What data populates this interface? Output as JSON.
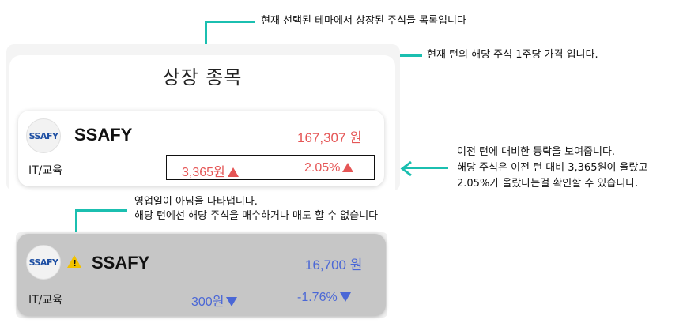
{
  "annotations": {
    "top": "현재 선택된 테마에서 상장된 주식들 목록입니다",
    "price": "현재 턴의 해당 주식 1주당 가격 입니다.",
    "change": [
      "이전 턴에 대비한 등락을 보여줍니다.",
      "해당 주식은 이전 턴 대비 3,365원이 올랐고",
      "2.05%가 올랐다는걸 확인할 수 있습니다."
    ],
    "holiday": [
      "영업일이 아님을 나타냅니다.",
      "해당 턴에선 해당 주식을 매수하거나 매도 할 수 없습니다"
    ]
  },
  "panel": {
    "title": "상장 종목"
  },
  "stock_active": {
    "logo_text": "SSAFY",
    "name": "SSAFY",
    "price": "167,307 원",
    "sector": "IT/교육",
    "change_amount": "3,365원",
    "change_percent": "2.05%",
    "direction": "up"
  },
  "stock_closed": {
    "logo_text": "SSAFY",
    "name": "SSAFY",
    "price": "16,700 원",
    "sector": "IT/교육",
    "change_amount": "300원",
    "change_percent": "-1.76%",
    "direction": "down",
    "icon": "warning-icon"
  },
  "colors": {
    "up": "#e55656",
    "down": "#4a67d6",
    "annotation_arrow": "#1bbfb0",
    "closed_card_bg": "#c6c6c6"
  }
}
